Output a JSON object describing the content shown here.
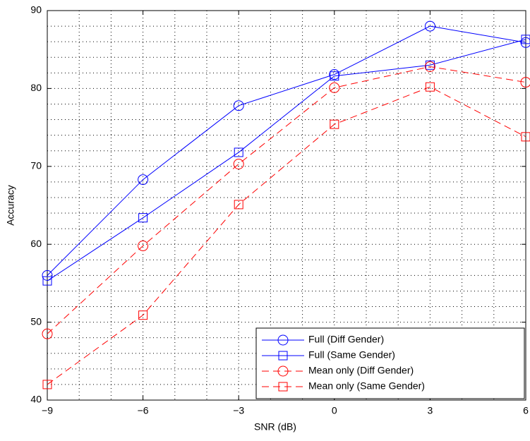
{
  "chart_data": {
    "type": "line",
    "x_label": "SNR (dB)",
    "y_label": "Accuracy",
    "x": [
      -9,
      -6,
      -3,
      0,
      3,
      6
    ],
    "series": [
      {
        "name": "Full (Diff Gender)",
        "color": "#0000ff",
        "marker": "circle",
        "linestyle": "solid",
        "values": [
          56.0,
          68.3,
          77.8,
          81.8,
          88.0,
          85.9
        ]
      },
      {
        "name": "Full (Same Gender)",
        "color": "#0000ff",
        "marker": "square",
        "linestyle": "solid",
        "values": [
          55.3,
          63.4,
          71.8,
          81.6,
          83.0,
          86.3
        ]
      },
      {
        "name": "Mean only (Diff Gender)",
        "color": "#ff0000",
        "marker": "circle",
        "linestyle": "dashed",
        "values": [
          48.5,
          59.8,
          70.3,
          80.1,
          82.8,
          80.8
        ]
      },
      {
        "name": "Mean only (Same Gender)",
        "color": "#ff0000",
        "marker": "square",
        "linestyle": "dashed",
        "values": [
          42.0,
          50.9,
          65.1,
          75.4,
          80.2,
          73.8
        ]
      }
    ],
    "xlim": [
      -9,
      6
    ],
    "xticks": [
      {
        "value": -9,
        "label": "−9"
      },
      {
        "value": -6,
        "label": "−6"
      },
      {
        "value": -3,
        "label": "−3"
      },
      0,
      3,
      6
    ],
    "ylim": [
      40,
      90
    ],
    "yticks": [
      40,
      50,
      60,
      70,
      80,
      90
    ],
    "grid": true,
    "minor_grid": true,
    "legend": "lower right"
  }
}
